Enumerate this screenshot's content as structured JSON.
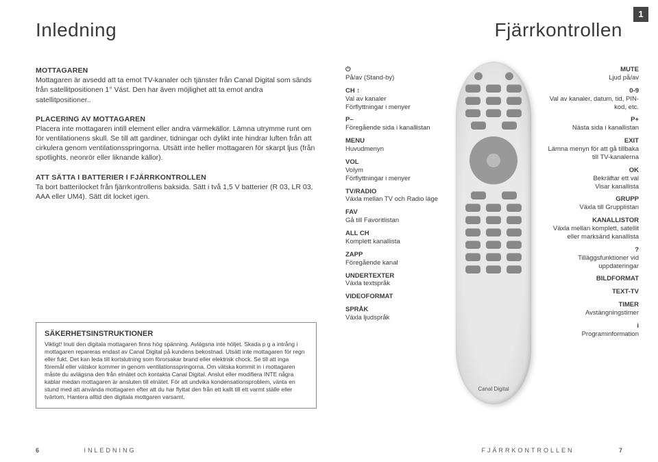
{
  "pageTopNumber": "1",
  "titles": {
    "left": "Inledning",
    "right": "Fjärrkontrollen"
  },
  "left": {
    "s1head": "MOTTAGAREN",
    "s1body": "Mottagaren är avsedd att ta emot TV-kanaler och tjänster från Canal Digital som sänds från satellitpositionen 1° Väst. Den har även möjlighet att ta emot andra satellitpositioner..",
    "s2head": "PLACERING AV MOTTAGAREN",
    "s2body": "Placera inte mottagaren intill element eller andra värmekällor. Lämna utrymme runt om för ventilationens skull. Se till att gardiner, tidningar och dylikt inte hindrar luften från att cirkulera genom ventilationsspringorna. Utsätt inte heller mottagaren för skarpt ljus (från spotlights, neonrör eller liknande källor).",
    "s3head": "ATT SÄTTA I BATTERIER I FJÄRRKONTROLLEN",
    "s3body": "Ta bort batterilocket från fjärrkontrollens baksida. Sätt i två 1,5 V batterier (R 03, LR 03, AAA eller UM4). Sätt dit locket igen."
  },
  "safety": {
    "head": "SÄKERHETSINSTRUKTIONER",
    "body": "Viktigt! Inuti den digitala mottagaren finns hög spänning. Avlägsna inte höljet. Skada p g a intrång i mottagaren repareras endast av Canal Digital på kundens bekostnad. Utsätt inte mottagaren för regn eller fukt. Det kan leda till kortslutning som förorsakar brand eller elektrisk chock. Se till att inga föremål eller vätskor kommer in genom ventilationsspringorna. Om vätska kommit in i mottagaren måste du avlägsna den från elnätet och kontakta Canal Digital. Anslut eller modifiera INTE några kablar medan mottagaren är ansluten till elnätet. För att undvika kondensationsproblem, vänta en stund med att använda mottagaren efter att du har flyttat den från ett kallt till ett varmt ställe eller tvärtom. Hantera alltid den digitala mottgaren varsamt."
  },
  "labelsLeft": [
    {
      "t": "⏻",
      "d": "På/av (Stand-by)"
    },
    {
      "t": "CH ↕",
      "d": "Val av kanaler\nFörflyttningar i menyer"
    },
    {
      "t": "P–",
      "d": "Föregående sida i kanallistan"
    },
    {
      "t": "MENU",
      "d": "Huvudmenyn"
    },
    {
      "t": "VOL",
      "d": "Volym\nFörflyttningar i menyer"
    },
    {
      "t": "TV/RADIO",
      "d": "Växla mellan TV och Radio läge"
    },
    {
      "t": "FAV",
      "d": "Gå till Favoritlistan"
    },
    {
      "t": "ALL CH",
      "d": "Komplett kanallista"
    },
    {
      "t": "ZAPP",
      "d": "Föregående kanal"
    },
    {
      "t": "UNDERTEXTER",
      "d": "Växla textspråk"
    },
    {
      "t": "VIDEOFORMAT",
      "d": ""
    },
    {
      "t": "SPRÅK",
      "d": "Växla ljudspråk"
    }
  ],
  "labelsRight": [
    {
      "t": "MUTE",
      "d": "Ljud på/av"
    },
    {
      "t": "0-9",
      "d": "Val av kanaler, datum, tid, PIN-kod, etc."
    },
    {
      "t": "P+",
      "d": "Nästa sida i kanallistan"
    },
    {
      "t": "EXIT",
      "d": "Lämna menyn för att gå tillbaka till TV-kanalerna"
    },
    {
      "t": "OK",
      "d": "Bekräftar ett val\nVisar kanallista"
    },
    {
      "t": "GRUPP",
      "d": "Växla till Grupplistan"
    },
    {
      "t": "KANALLISTOR",
      "d": "Växla mellan komplett, satellit eller marksänd kanallista"
    },
    {
      "t": "?",
      "d": "Tilläggsfunktioner vid uppdateringar"
    },
    {
      "t": "BILDFORMAT",
      "d": ""
    },
    {
      "t": "TEXT-TV",
      "d": ""
    },
    {
      "t": "TIMER",
      "d": "Avstängningstimer"
    },
    {
      "t": "i",
      "d": "Programinformation"
    }
  ],
  "remoteLogo": "Canal Digital",
  "footer": {
    "leftNum": "6",
    "leftText": "INLEDNING",
    "rightText": "FJÄRRKONTROLLEN",
    "rightNum": "7"
  }
}
